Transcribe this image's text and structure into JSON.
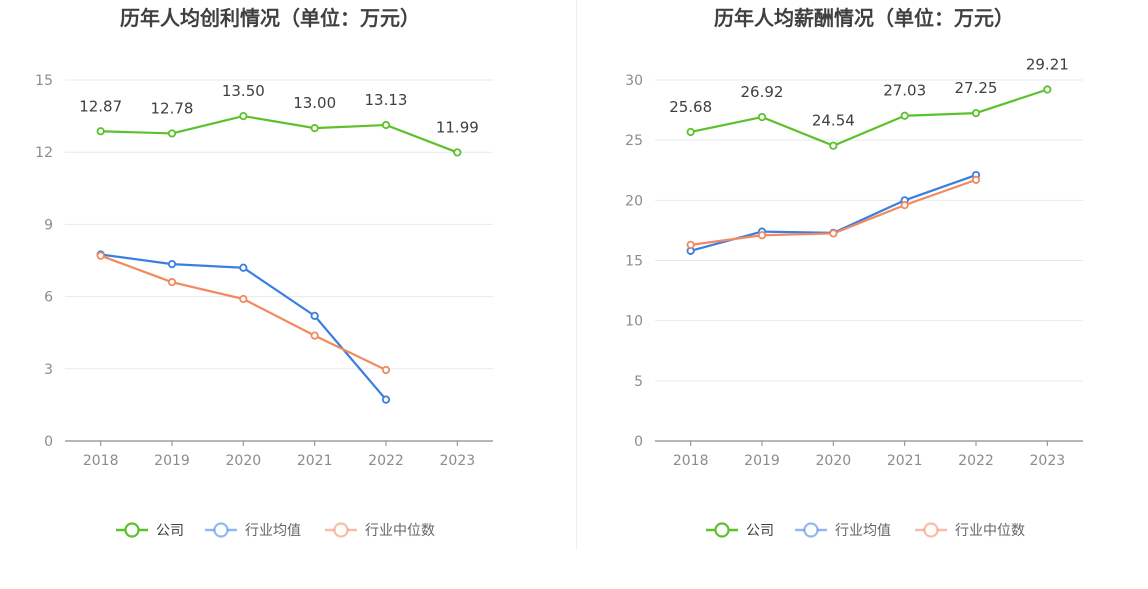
{
  "charts": [
    {
      "title": "历年人均创利情况（单位：万元）",
      "chart_data": {
        "type": "line",
        "title": "历年人均创利情况（单位：万元）",
        "xlabel": "",
        "ylabel": "",
        "categories": [
          "2018",
          "2019",
          "2020",
          "2021",
          "2022",
          "2023"
        ],
        "ylim": [
          0,
          15
        ],
        "yticks": [
          "0",
          "3",
          "6",
          "9",
          "12",
          "15"
        ],
        "grid": true,
        "legend": "bottom",
        "series": [
          {
            "name": "公司",
            "color": "#5cc12b",
            "values": [
              12.87,
              12.78,
              13.5,
              13.0,
              13.13,
              11.99
            ],
            "labels": [
              "12.87",
              "12.78",
              "13.50",
              "13.00",
              "13.13",
              "11.99"
            ]
          },
          {
            "name": "行业均值",
            "color": "#3a7ee2",
            "values": [
              7.75,
              7.35,
              7.2,
              5.2,
              1.72,
              null
            ]
          },
          {
            "name": "行业中位数",
            "color": "#f2895f",
            "values": [
              7.7,
              6.6,
              5.9,
              4.38,
              2.95,
              null
            ]
          }
        ]
      }
    },
    {
      "title": "历年人均薪酬情况（单位：万元）",
      "chart_data": {
        "type": "line",
        "title": "历年人均薪酬情况（单位：万元）",
        "xlabel": "",
        "ylabel": "",
        "categories": [
          "2018",
          "2019",
          "2020",
          "2021",
          "2022",
          "2023"
        ],
        "ylim": [
          0,
          30
        ],
        "yticks": [
          "0",
          "5",
          "10",
          "15",
          "20",
          "25",
          "30"
        ],
        "grid": true,
        "legend": "bottom",
        "series": [
          {
            "name": "公司",
            "color": "#5cc12b",
            "values": [
              25.68,
              26.92,
              24.54,
              27.03,
              27.25,
              29.21
            ],
            "labels": [
              "25.68",
              "26.92",
              "24.54",
              "27.03",
              "27.25",
              "29.21"
            ]
          },
          {
            "name": "行业均值",
            "color": "#3a7ee2",
            "values": [
              15.8,
              17.4,
              17.3,
              20.0,
              22.1,
              null
            ]
          },
          {
            "name": "行业中位数",
            "color": "#f2895f",
            "values": [
              16.3,
              17.1,
              17.25,
              19.6,
              21.7,
              null
            ]
          }
        ]
      }
    }
  ]
}
